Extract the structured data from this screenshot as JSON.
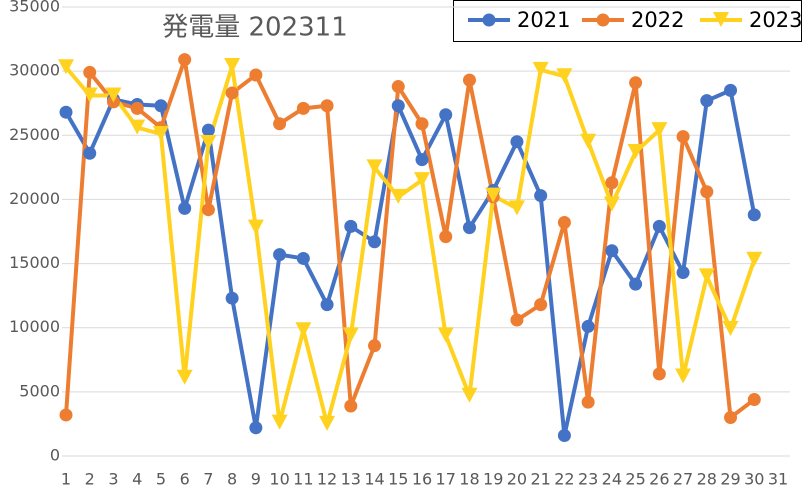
{
  "chart_data": {
    "type": "line",
    "title": "発電量 202311",
    "x": [
      1,
      2,
      3,
      4,
      5,
      6,
      7,
      8,
      9,
      10,
      11,
      12,
      13,
      14,
      15,
      16,
      17,
      18,
      19,
      20,
      21,
      22,
      23,
      24,
      25,
      26,
      27,
      28,
      29,
      30
    ],
    "xlim": [
      1,
      31
    ],
    "xticks": [
      1,
      2,
      3,
      4,
      5,
      6,
      7,
      8,
      9,
      10,
      11,
      12,
      13,
      14,
      15,
      16,
      17,
      18,
      19,
      20,
      21,
      22,
      23,
      24,
      25,
      26,
      27,
      28,
      29,
      30,
      31
    ],
    "ylim": [
      0,
      35000
    ],
    "yticks": [
      0,
      5000,
      10000,
      15000,
      20000,
      25000,
      30000,
      35000
    ],
    "grid": true,
    "legend": "top-right",
    "series": [
      {
        "name": "2021",
        "color": "#4472c4",
        "marker": "circle",
        "values": [
          26800,
          23600,
          27800,
          27400,
          27300,
          19300,
          25400,
          12300,
          2200,
          15700,
          15400,
          11800,
          17900,
          16700,
          27300,
          23100,
          26600,
          17800,
          20700,
          24500,
          20300,
          1600,
          10100,
          16000,
          13400,
          17900,
          14300,
          27700,
          28500,
          18800
        ]
      },
      {
        "name": "2022",
        "color": "#ed7d31",
        "marker": "circle",
        "values": [
          3200,
          29900,
          27600,
          27100,
          25600,
          30900,
          19200,
          28300,
          29700,
          25900,
          27100,
          27300,
          3900,
          8600,
          28800,
          25900,
          17100,
          29300,
          20200,
          10600,
          11800,
          18200,
          4200,
          21300,
          29100,
          6400,
          24900,
          20600,
          3000,
          4400
        ]
      },
      {
        "name": "2023",
        "color": "#ffd21f",
        "marker": "triangle-down",
        "values": [
          30300,
          28100,
          28100,
          25600,
          25100,
          6100,
          24400,
          30400,
          17800,
          2600,
          9800,
          2500,
          9400,
          22500,
          20200,
          21500,
          9400,
          4700,
          20300,
          19300,
          30100,
          29600,
          24500,
          19600,
          23700,
          25400,
          6200,
          14000,
          9900,
          15300
        ]
      }
    ]
  }
}
